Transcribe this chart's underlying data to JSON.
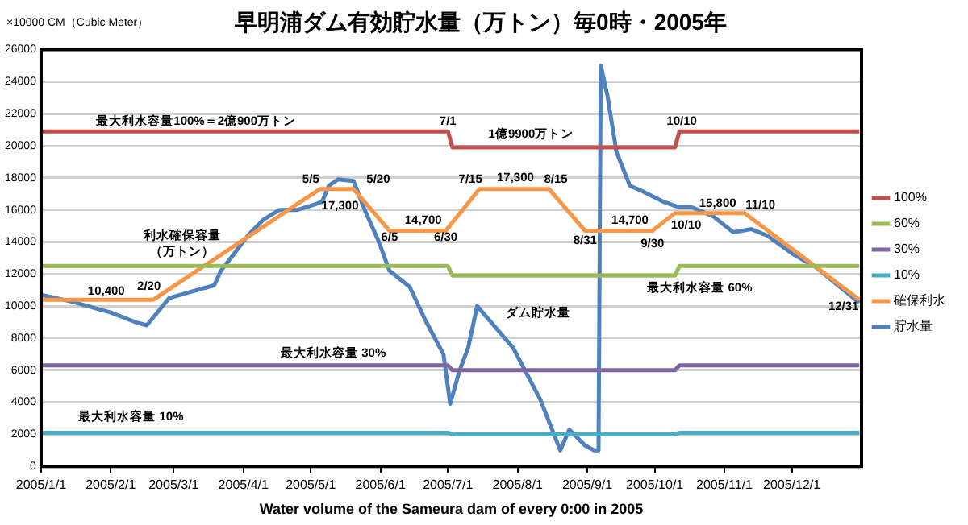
{
  "chart_data": {
    "type": "line",
    "title": "早明浦ダム有効貯水量（万トン）毎0時・2005年",
    "ylabel": "×10000 CM（Cubic Meter）",
    "xlabel": "Water volume of the Sameura dam of every 0:00 in 2005",
    "xlim": [
      "2005-01-01",
      "2006-01-01"
    ],
    "xticks": [
      {
        "value": "2005-01-01",
        "label": "2005/1/1"
      },
      {
        "value": "2005-02-01",
        "label": "2005/2/1"
      },
      {
        "value": "2005-03-01",
        "label": "2005/3/1"
      },
      {
        "value": "2005-04-01",
        "label": "2005/4/1"
      },
      {
        "value": "2005-05-01",
        "label": "2005/5/1"
      },
      {
        "value": "2005-06-01",
        "label": "2005/6/1"
      },
      {
        "value": "2005-07-01",
        "label": "2005/7/1"
      },
      {
        "value": "2005-08-01",
        "label": "2005/8/1"
      },
      {
        "value": "2005-09-01",
        "label": "2005/9/1"
      },
      {
        "value": "2005-10-01",
        "label": "2005/10/1"
      },
      {
        "value": "2005-11-01",
        "label": "2005/11/1"
      },
      {
        "value": "2005-12-01",
        "label": "2005/12/1"
      }
    ],
    "ylim": [
      0,
      26000
    ],
    "yticks": [
      0,
      2000,
      4000,
      6000,
      8000,
      10000,
      12000,
      14000,
      16000,
      18000,
      20000,
      22000,
      24000,
      26000
    ],
    "grid": "y",
    "legend": "right",
    "marker": "none",
    "line_style": "solid",
    "series": [
      {
        "name": "100%",
        "color": "#c0504d",
        "x": [
          "2005-01-01",
          "2005-07-01",
          "2005-07-03",
          "2005-10-10",
          "2005-10-12",
          "2005-12-31"
        ],
        "values": [
          20900,
          20900,
          19900,
          19900,
          20900,
          20900
        ]
      },
      {
        "name": "60%",
        "color": "#9bbb59",
        "x": [
          "2005-01-01",
          "2005-07-01",
          "2005-07-03",
          "2005-10-10",
          "2005-10-12",
          "2005-12-31"
        ],
        "values": [
          12500,
          12500,
          11900,
          11900,
          12500,
          12500
        ]
      },
      {
        "name": "30%",
        "color": "#8064a2",
        "x": [
          "2005-01-01",
          "2005-07-01",
          "2005-07-03",
          "2005-10-10",
          "2005-10-12",
          "2005-12-31"
        ],
        "values": [
          6300,
          6300,
          6000,
          6000,
          6300,
          6300
        ]
      },
      {
        "name": "10%",
        "color": "#4bacc6",
        "x": [
          "2005-01-01",
          "2005-07-01",
          "2005-07-03",
          "2005-10-10",
          "2005-10-12",
          "2005-12-31"
        ],
        "values": [
          2100,
          2100,
          2000,
          2000,
          2100,
          2100
        ]
      },
      {
        "name": "確保利水",
        "color": "#f79646",
        "x": [
          "2005-01-01",
          "2005-02-20",
          "2005-05-05",
          "2005-05-20",
          "2005-06-05",
          "2005-06-30",
          "2005-07-15",
          "2005-08-15",
          "2005-08-31",
          "2005-09-30",
          "2005-10-10",
          "2005-11-10",
          "2005-12-31"
        ],
        "values": [
          10400,
          10400,
          17300,
          17300,
          14700,
          14700,
          17300,
          17300,
          14700,
          14700,
          15800,
          15800,
          10400
        ]
      },
      {
        "name": "貯水量",
        "color": "#4f81bd",
        "x": [
          "2005-01-01",
          "2005-01-14",
          "2005-02-01",
          "2005-02-12",
          "2005-02-17",
          "2005-02-27",
          "2005-03-09",
          "2005-03-19",
          "2005-03-22",
          "2005-03-27",
          "2005-04-03",
          "2005-04-10",
          "2005-04-17",
          "2005-04-25",
          "2005-05-02",
          "2005-05-06",
          "2005-05-09",
          "2005-05-13",
          "2005-05-20",
          "2005-05-25",
          "2005-05-31",
          "2005-06-05",
          "2005-06-14",
          "2005-06-21",
          "2005-06-29",
          "2005-07-02",
          "2005-07-06",
          "2005-07-10",
          "2005-07-14",
          "2005-07-30",
          "2005-08-11",
          "2005-08-20",
          "2005-08-24",
          "2005-08-31",
          "2005-09-04",
          "2005-09-06",
          "2005-09-07",
          "2005-09-10",
          "2005-09-14",
          "2005-09-20",
          "2005-09-25",
          "2005-10-05",
          "2005-10-11",
          "2005-10-17",
          "2005-10-27",
          "2005-11-05",
          "2005-11-13",
          "2005-11-20",
          "2005-12-02",
          "2005-12-12",
          "2005-12-31"
        ],
        "values": [
          10700,
          10300,
          9600,
          9000,
          8800,
          10500,
          10900,
          11300,
          12200,
          13100,
          14400,
          15400,
          16000,
          16000,
          16300,
          16500,
          17500,
          17900,
          17800,
          16000,
          14100,
          12200,
          11200,
          9100,
          7000,
          3900,
          5900,
          7400,
          10000,
          7400,
          4200,
          1000,
          2300,
          1300,
          1000,
          1000,
          25000,
          23100,
          19600,
          17500,
          17200,
          16500,
          16200,
          16200,
          15600,
          14600,
          14800,
          14400,
          13200,
          12400,
          10200
        ]
      }
    ],
    "annotations": [
      "最大利水容量100%＝2億900万トン",
      "7/1",
      "1億9900万トン",
      "10/10",
      "5/5",
      "5/20",
      "17,300",
      "14,700",
      "6/5",
      "6/30",
      "7/15",
      "17,300",
      "8/15",
      "8/31",
      "14,700",
      "9/30",
      "10/10",
      "15,800",
      "11/10",
      "12/31",
      "10,400",
      "2/20",
      "利水確保容量（万トン）",
      "ダム貯水量",
      "最大利水容量 60%",
      "最大利水容量 30%",
      "最大利水容量 10%"
    ]
  }
}
